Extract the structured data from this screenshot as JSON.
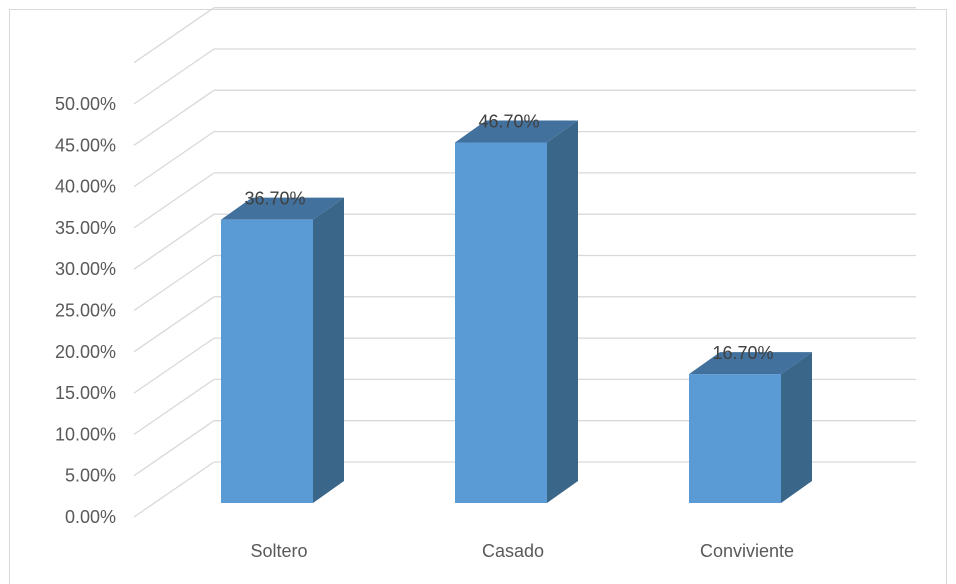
{
  "chart_data": {
    "type": "bar",
    "style": "3d-column",
    "categories": [
      "Soltero",
      "Casado",
      "Conviviente"
    ],
    "values": [
      36.7,
      46.7,
      16.7
    ],
    "value_labels": [
      "36.70%",
      "46.70%",
      "16.70%"
    ],
    "title": "",
    "xlabel": "",
    "ylabel": "",
    "ylim": [
      0,
      50
    ],
    "yticks": [
      "0.00%",
      "5.00%",
      "10.00%",
      "15.00%",
      "20.00%",
      "25.00%",
      "30.00%",
      "35.00%",
      "40.00%",
      "45.00%",
      "50.00%"
    ],
    "grid": true,
    "legend": "none",
    "colors": {
      "bar_front": "#5b9bd5",
      "bar_side": "#3a6689",
      "bar_top": "#41719c",
      "grid": "#d9d9d9"
    }
  }
}
